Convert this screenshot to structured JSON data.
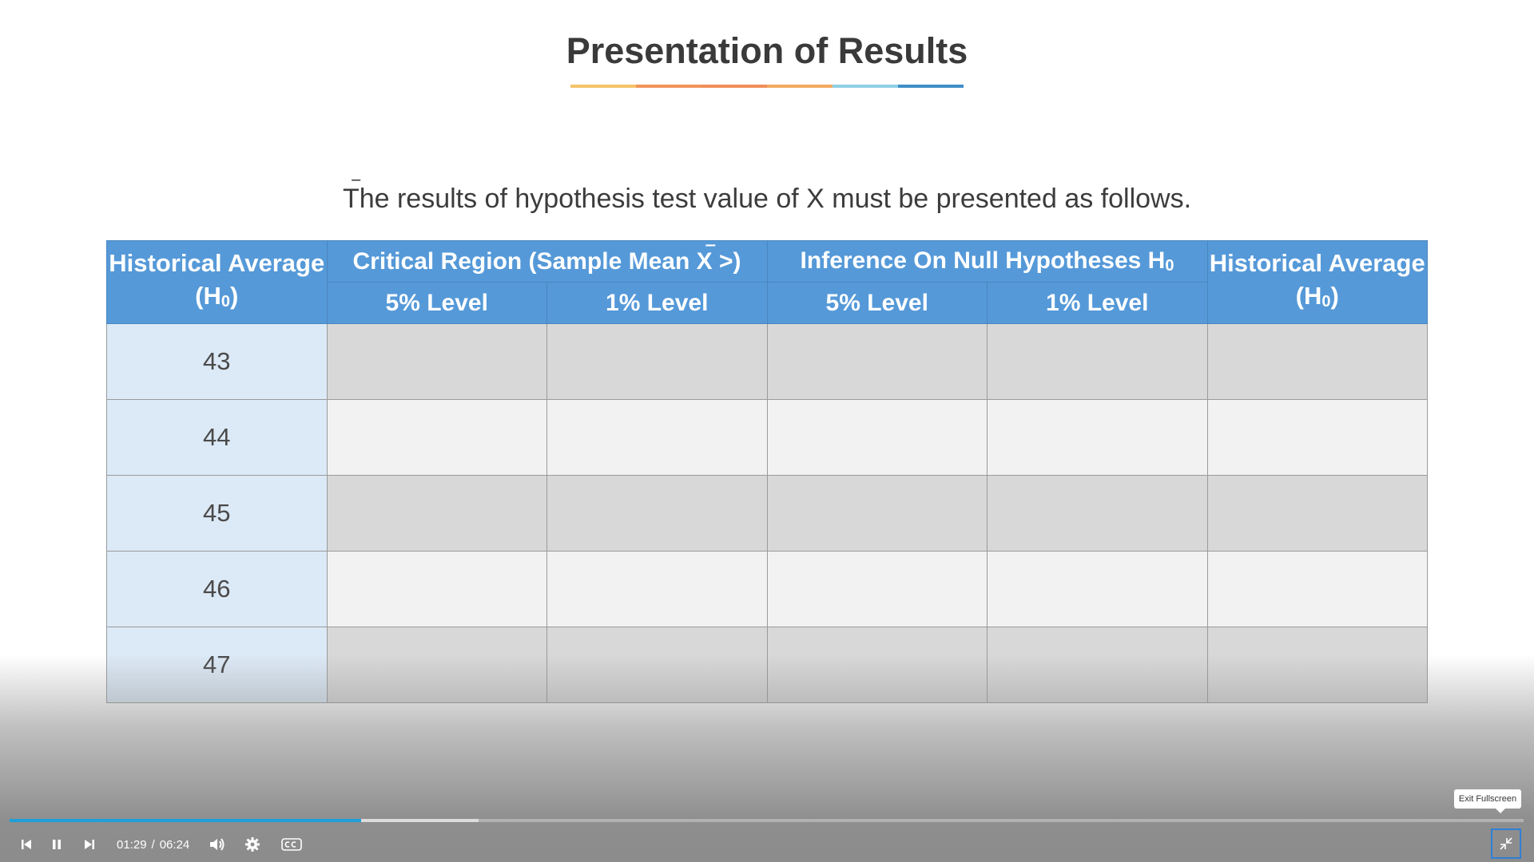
{
  "slide": {
    "title": "Presentation of Results",
    "title_rule_colors": [
      "#f6c36a",
      "#f0955a",
      "#f08f5a",
      "#f2a960",
      "#8fd0e6",
      "#3f8fc7"
    ],
    "intro_before": "The results of hypothesis test value of X",
    "intro_bar": "‾",
    "intro_after": " must be presented as follows."
  },
  "table": {
    "col_first": "Historical Average (H",
    "col_first_sub": "0",
    "col_first_close": ")",
    "group_critical": "Critical Region (Sample Mean X",
    "group_critical_bar": "‾",
    "group_critical_close": " >)",
    "group_inference": "Inference On Null Hypotheses H",
    "group_inference_sub": "0",
    "level_5": "5% Level",
    "level_1": "1% Level",
    "col_last": "Historical Average (H",
    "col_last_sub": "0",
    "col_last_close": ")",
    "rows": [
      "43",
      "44",
      "45",
      "46",
      "47"
    ],
    "colors": {
      "header": "#5599d8",
      "avg_cell": "#dce9f6",
      "row_dark": "#d8d8d8",
      "row_light": "#f2f2f2"
    }
  },
  "player": {
    "current_time": "01:29",
    "separator": "/",
    "duration": "06:24",
    "played_fraction": 0.232,
    "buffered_fraction": 0.31,
    "tooltip": "Exit Fullscreen",
    "icons": [
      "skip-back-icon",
      "pause-icon",
      "skip-forward-icon",
      "volume-icon",
      "gear-icon",
      "cc-icon",
      "exit-fullscreen-icon"
    ],
    "accent": "#1e9fd8"
  }
}
